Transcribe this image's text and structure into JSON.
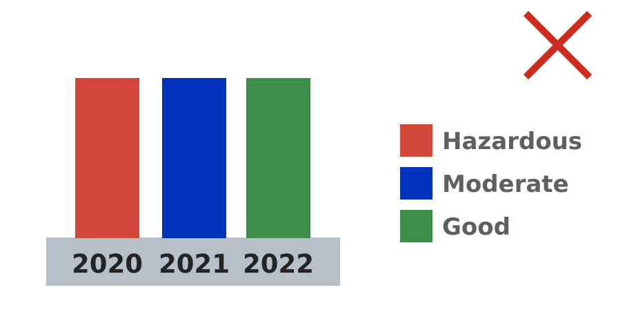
{
  "chart_data": {
    "type": "bar",
    "categories": [
      "2020",
      "2021",
      "2022"
    ],
    "values": [
      100,
      100,
      100
    ],
    "colors": [
      "#d2473a",
      "#0033bb",
      "#3d8e4a"
    ],
    "legend": [
      {
        "label": "Hazardous",
        "color": "#d2473a"
      },
      {
        "label": "Moderate",
        "color": "#0033bb"
      },
      {
        "label": "Good",
        "color": "#3d8e4a"
      }
    ],
    "legend_placement": "right",
    "axis_band_color": "#b5c0c8",
    "grid": false,
    "ylim": [
      0,
      100
    ]
  },
  "overlay": {
    "icon": "cross-mark-icon",
    "color": "#cc2b1d"
  }
}
